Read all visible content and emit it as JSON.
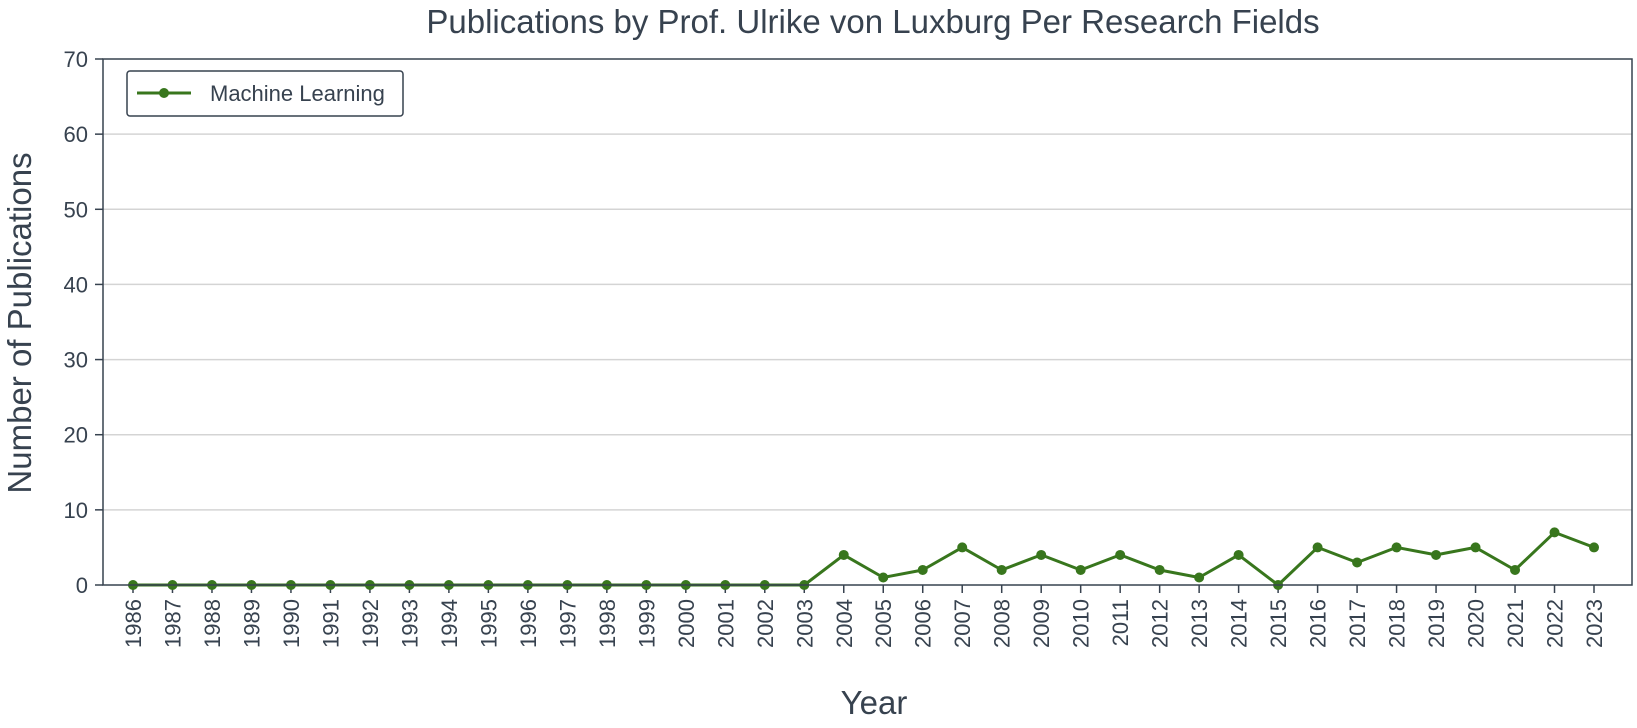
{
  "chart_data": {
    "type": "line",
    "title": "Publications by Prof. Ulrike von Luxburg Per Research Fields",
    "xlabel": "Year",
    "ylabel": "Number of Publications",
    "ylim": [
      0,
      70
    ],
    "yticks": [
      0,
      10,
      20,
      30,
      40,
      50,
      60,
      70
    ],
    "grid": "horizontal",
    "legend_position": "top-left",
    "x": [
      1986,
      1987,
      1988,
      1989,
      1990,
      1991,
      1992,
      1993,
      1994,
      1995,
      1996,
      1997,
      1998,
      1999,
      2000,
      2001,
      2002,
      2003,
      2004,
      2005,
      2006,
      2007,
      2008,
      2009,
      2010,
      2011,
      2012,
      2013,
      2014,
      2015,
      2016,
      2017,
      2018,
      2019,
      2020,
      2021,
      2022,
      2023
    ],
    "series": [
      {
        "name": "Machine Learning",
        "color": "#38761d",
        "values": [
          0,
          0,
          0,
          0,
          0,
          0,
          0,
          0,
          0,
          0,
          0,
          0,
          0,
          0,
          0,
          0,
          0,
          0,
          4,
          1,
          2,
          5,
          2,
          4,
          2,
          4,
          2,
          1,
          4,
          0,
          5,
          3,
          5,
          4,
          5,
          2,
          7,
          5
        ]
      }
    ]
  }
}
